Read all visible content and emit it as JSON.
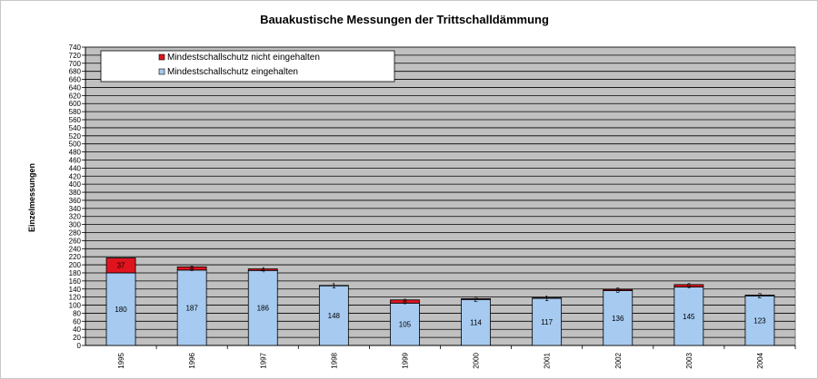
{
  "chart_data": {
    "type": "bar",
    "stacked": true,
    "title": "Bauakustische Messungen der Trittschalldämmung",
    "xlabel": "",
    "ylabel": "Einzelmessungen",
    "ylim": [
      0,
      740
    ],
    "ytick_step": 20,
    "grid": true,
    "legend_position": "top-left",
    "categories": [
      "1995",
      "1996",
      "1997",
      "1998",
      "1999",
      "2000",
      "2001",
      "2002",
      "2003",
      "2004"
    ],
    "series": [
      {
        "name": "Mindestschallschutz eingehalten",
        "color": "#a6caf0",
        "values": [
          180,
          187,
          186,
          148,
          105,
          114,
          117,
          136,
          145,
          123
        ]
      },
      {
        "name": "Mindestschallschutz nicht eingehalten",
        "color": "#e0141e",
        "values": [
          37,
          8,
          4,
          1,
          8,
          2,
          1,
          3,
          6,
          2
        ]
      }
    ],
    "legend_order": [
      1,
      0
    ],
    "plot_background": "#c0c0c0"
  }
}
